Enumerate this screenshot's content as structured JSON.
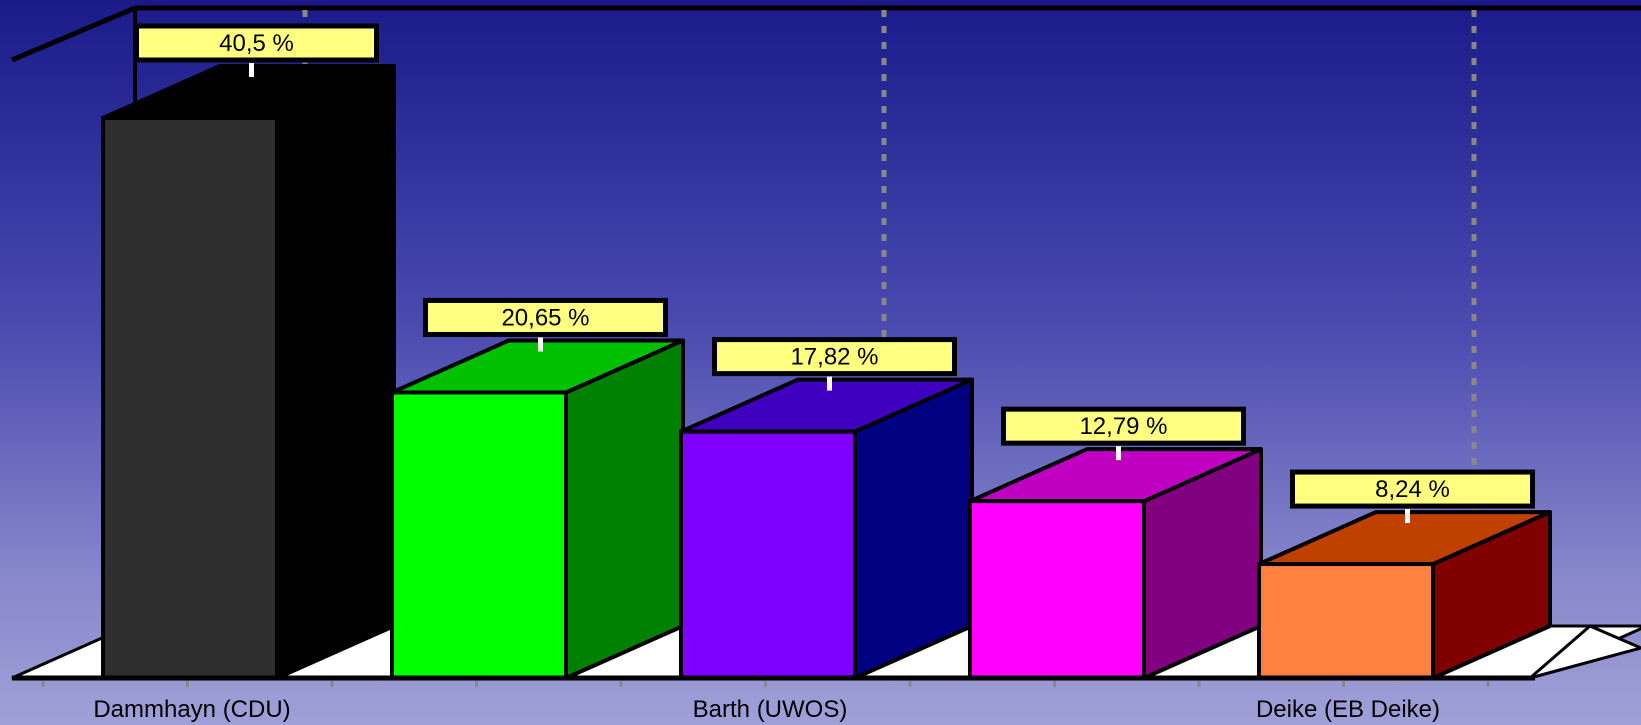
{
  "chart_data": {
    "type": "bar",
    "categories": [
      "Dammhayn (CDU)",
      "",
      "Barth (UWOS)",
      "",
      "Deike (EB Deike)"
    ],
    "values": [
      40.5,
      20.65,
      17.82,
      12.79,
      8.24
    ],
    "value_labels": [
      "40,5 %",
      "20,65 %",
      "17,82 %",
      "12,79 %",
      "8,24 %"
    ],
    "title": "",
    "xlabel": "",
    "ylabel": "",
    "ylim": [
      0,
      40.5
    ],
    "grid": true,
    "legend": "none",
    "style": "3d",
    "colors": {
      "front": [
        "#2e2e2e",
        "#00ff00",
        "#8000ff",
        "#ff00ff",
        "#ff8040"
      ],
      "side": [
        "#000000",
        "#008000",
        "#000080",
        "#800080",
        "#800000"
      ],
      "top": [
        "#000000",
        "#00c000",
        "#4000c0",
        "#c000c0",
        "#c04000"
      ],
      "label_bg": "#ffff80"
    }
  }
}
